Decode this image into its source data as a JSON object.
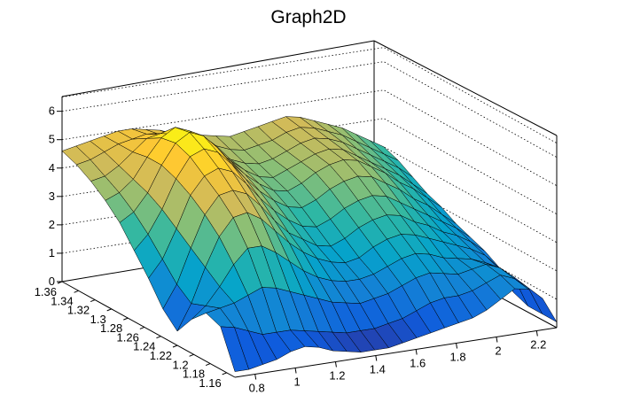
{
  "chart_data": {
    "type": "surface",
    "title": "Graph2D",
    "x_ticks": [
      "0.8",
      "1",
      "1.2",
      "1.4",
      "1.6",
      "1.8",
      "2",
      "2.2"
    ],
    "y_ticks": [
      "1.16",
      "1.18",
      "1.2",
      "1.22",
      "1.24",
      "1.26",
      "1.28",
      "1.3",
      "1.32",
      "1.34",
      "1.36"
    ],
    "z_ticks": [
      "0",
      "1",
      "2",
      "3",
      "4",
      "5",
      "6"
    ],
    "xlim": [
      0.7,
      2.3
    ],
    "ylim": [
      1.15,
      1.36
    ],
    "zlim": [
      0,
      6.8
    ],
    "grid": true,
    "palette": [
      "#352a87",
      "#0f5cdd",
      "#1481d6",
      "#06a4ca",
      "#2eb7a4",
      "#87bf77",
      "#d1bb59",
      "#fec832",
      "#f9fb0e"
    ],
    "surface_heights": [
      [
        4.6,
        4.7,
        4.8,
        4.9,
        5.0,
        5.0,
        4.9,
        4.8,
        4.6,
        4.5,
        4.4,
        4.3,
        4.2,
        4.3,
        4.4,
        4.5,
        4.6,
        4.5,
        4.3,
        4.1,
        3.9,
        3.6,
        3.3,
        3.0
      ],
      [
        4.4,
        4.5,
        4.7,
        4.9,
        5.0,
        5.1,
        5.0,
        4.9,
        4.7,
        4.5,
        4.3,
        4.1,
        4.0,
        4.1,
        4.2,
        4.4,
        4.5,
        4.4,
        4.2,
        4.0,
        3.7,
        3.4,
        3.1,
        2.8
      ],
      [
        4.1,
        4.2,
        4.5,
        4.9,
        5.3,
        5.4,
        5.3,
        5.0,
        4.7,
        4.4,
        4.1,
        3.9,
        3.8,
        3.9,
        4.1,
        4.3,
        4.4,
        4.3,
        4.1,
        3.8,
        3.5,
        3.2,
        2.9,
        2.5
      ],
      [
        3.7,
        3.9,
        4.3,
        5.0,
        5.6,
        5.9,
        5.7,
        5.3,
        4.8,
        4.4,
        4.0,
        3.7,
        3.6,
        3.8,
        4.0,
        4.2,
        4.3,
        4.2,
        3.9,
        3.6,
        3.3,
        3.0,
        2.6,
        2.2
      ],
      [
        3.2,
        3.5,
        4.1,
        5.0,
        5.7,
        6.0,
        5.8,
        5.3,
        4.7,
        4.2,
        3.8,
        3.5,
        3.4,
        3.6,
        3.9,
        4.1,
        4.2,
        4.1,
        3.8,
        3.5,
        3.1,
        2.8,
        2.4,
        2.0
      ],
      [
        2.5,
        3.0,
        3.8,
        4.8,
        5.5,
        5.7,
        5.5,
        5.0,
        4.4,
        3.9,
        3.5,
        3.2,
        3.1,
        3.3,
        3.6,
        3.8,
        3.9,
        3.8,
        3.5,
        3.2,
        2.8,
        2.5,
        2.1,
        1.7
      ],
      [
        1.8,
        2.4,
        3.4,
        4.5,
        5.1,
        5.3,
        5.1,
        4.6,
        4.0,
        3.5,
        3.1,
        2.8,
        2.7,
        2.9,
        3.2,
        3.4,
        3.5,
        3.4,
        3.1,
        2.8,
        2.5,
        2.2,
        1.9,
        1.5
      ],
      [
        1.0,
        1.8,
        3.0,
        4.1,
        4.7,
        4.8,
        4.6,
        4.1,
        3.5,
        3.0,
        2.7,
        2.4,
        2.3,
        2.5,
        2.8,
        3.0,
        3.1,
        3.0,
        2.7,
        2.5,
        2.2,
        2.0,
        1.7,
        1.3
      ],
      [
        0.5,
        1.4,
        2.6,
        3.6,
        4.2,
        4.3,
        4.0,
        3.5,
        3.0,
        2.6,
        2.3,
        2.1,
        2.0,
        2.1,
        2.4,
        2.6,
        2.7,
        2.6,
        2.4,
        2.2,
        2.0,
        1.8,
        1.5,
        1.0
      ],
      [
        1.2,
        1.6,
        2.2,
        2.9,
        3.4,
        3.4,
        3.1,
        2.7,
        2.3,
        2.0,
        1.8,
        1.7,
        1.7,
        1.8,
        2.0,
        2.2,
        2.3,
        2.2,
        2.0,
        1.9,
        1.8,
        1.6,
        1.3,
        0.4
      ],
      [
        1.7,
        1.8,
        1.9,
        2.1,
        2.3,
        2.2,
        2.0,
        1.8,
        1.6,
        1.4,
        1.3,
        1.2,
        1.3,
        1.4,
        1.6,
        1.8,
        1.9,
        1.8,
        1.7,
        1.8,
        1.9,
        1.7,
        1.3,
        0.2
      ],
      [
        1.5,
        1.4,
        1.2,
        1.0,
        1.0,
        1.0,
        0.9,
        0.8,
        0.7,
        0.6,
        0.6,
        0.6,
        0.7,
        0.8,
        1.0,
        1.2,
        1.3,
        1.3,
        1.4,
        1.6,
        1.8,
        1.6,
        1.2,
        0.2
      ],
      [
        0.2,
        0.2,
        0.3,
        0.4,
        0.6,
        0.7,
        0.6,
        0.4,
        0.3,
        0.2,
        0.2,
        0.2,
        0.3,
        0.4,
        0.5,
        0.6,
        0.7,
        0.8,
        1.0,
        1.3,
        1.6,
        1.5,
        1.1,
        0.2
      ]
    ]
  }
}
